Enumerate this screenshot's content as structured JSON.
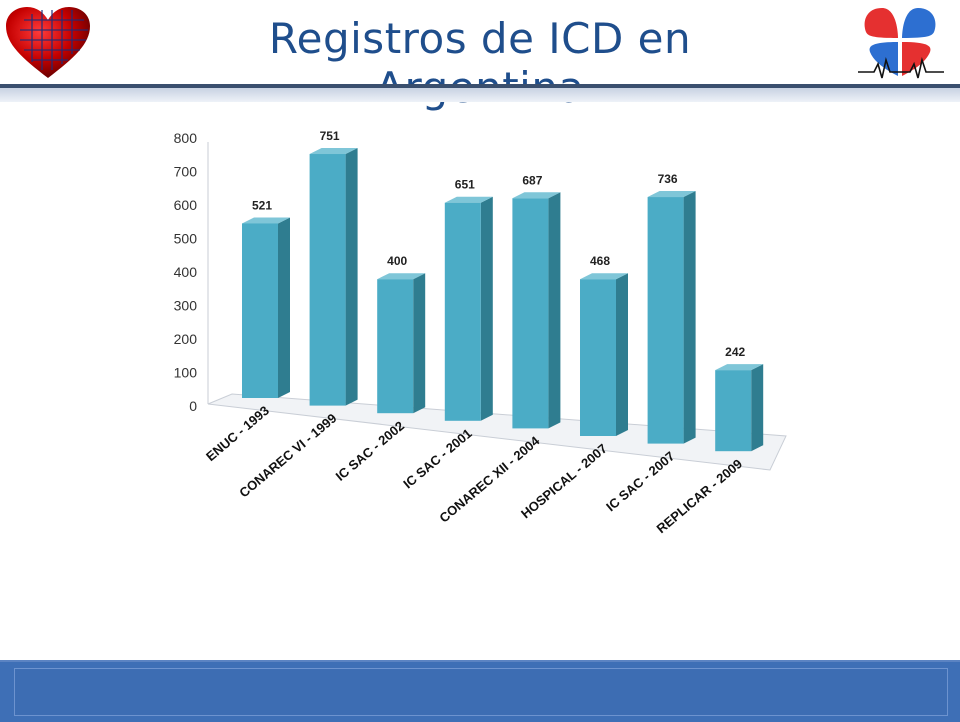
{
  "slide": {
    "title": "Registros de ICD en Argentina"
  },
  "colors": {
    "title": "#1f4e8c",
    "bar_front": "#4bacc6",
    "bar_side": "#2f7d90",
    "bar_top": "#7fc6d8",
    "footer": "#3e6fb6"
  },
  "logos": {
    "left": "heart-globe-logo",
    "right": "heart-ecg-logo"
  },
  "chart_data": {
    "type": "bar",
    "style": "3d-columns",
    "categories": [
      "ENUC - 1993",
      "CONAREC VI - 1999",
      "IC SAC - 2002",
      "IC SAC - 2001",
      "CONAREC XII - 2004",
      "HOSPICAL - 2007",
      "IC SAC - 2007",
      "REPLICAR - 2009"
    ],
    "values": [
      521,
      751,
      400,
      651,
      687,
      468,
      736,
      242
    ],
    "yticks": [
      0,
      100,
      200,
      300,
      400,
      500,
      600,
      700,
      800
    ],
    "ylim": [
      0,
      800
    ],
    "data_labels": true,
    "legend": "none",
    "grid": false
  }
}
